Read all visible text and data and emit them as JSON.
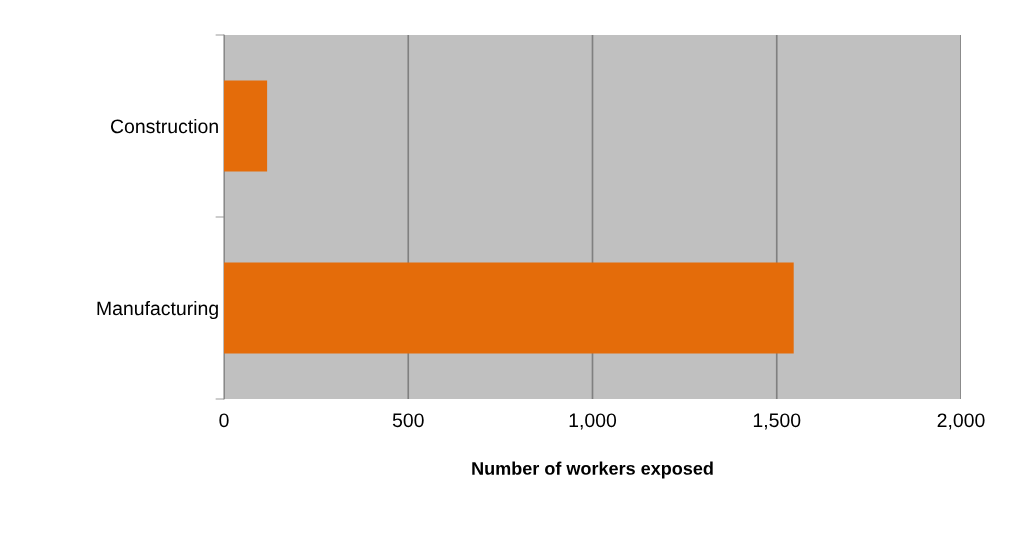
{
  "chart_data": {
    "type": "bar",
    "orientation": "horizontal",
    "categories": [
      "Construction",
      "Manufacturing"
    ],
    "values": [
      117,
      1546
    ],
    "color": "#e46c0a",
    "xlabel": "Number of workers exposed",
    "xlim": [
      0,
      2000
    ],
    "xticks": [
      0,
      {
        "value": 500,
        "label": "500"
      },
      {
        "value": 1000,
        "label": "1,000"
      },
      {
        "value": 1500,
        "label": "1,500"
      },
      {
        "value": 2000,
        "label": "2,000"
      }
    ],
    "grid": "x"
  }
}
